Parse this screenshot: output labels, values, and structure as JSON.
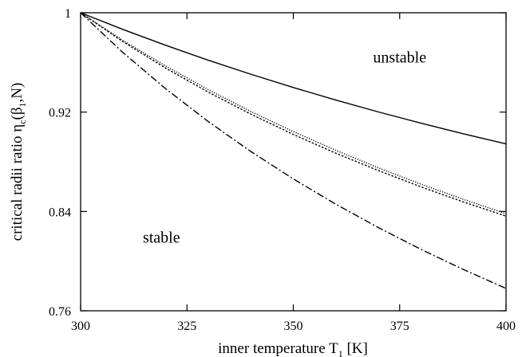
{
  "chart_data": {
    "type": "line",
    "xlabel": "inner temperature T",
    "xlabel_sub": "1",
    "xlabel_unit": " [K]",
    "ylabel": "critical radii ratio  η",
    "ylabel_sub_c": "c",
    "ylabel_open": "(β",
    "ylabel_sub_1": "1",
    "ylabel_close": ",N)",
    "xlim": [
      300,
      400
    ],
    "ylim": [
      0.76,
      1.0
    ],
    "xticks": [
      300,
      325,
      350,
      375,
      400
    ],
    "yticks": [
      {
        "value": 0.76,
        "label": "0.76"
      },
      {
        "value": 0.84,
        "label": "0.84"
      },
      {
        "value": 0.92,
        "label": "0.92"
      },
      {
        "value": 1.0,
        "label": "1"
      }
    ],
    "annotations": [
      {
        "text": "unstable",
        "x": 375,
        "y": 0.96
      },
      {
        "text": "stable",
        "x": 319,
        "y": 0.815
      }
    ],
    "grid": false,
    "series": [
      {
        "style": "solid",
        "x": [
          300,
          310,
          320,
          330,
          340,
          350,
          360,
          370,
          380,
          390,
          400
        ],
        "y": [
          1.0,
          0.9865,
          0.9738,
          0.9618,
          0.9505,
          0.9398,
          0.9297,
          0.9201,
          0.9111,
          0.9025,
          0.8944
        ]
      },
      {
        "style": "dotted",
        "x": [
          300,
          310,
          320,
          330,
          340,
          350,
          360,
          370,
          380,
          390,
          400
        ],
        "y": [
          1.0,
          0.9776,
          0.9571,
          0.9381,
          0.9205,
          0.9043,
          0.8892,
          0.8751,
          0.862,
          0.8497,
          0.8382
        ]
      },
      {
        "style": "dashed",
        "x": [
          300,
          310,
          320,
          330,
          340,
          350,
          360,
          370,
          380,
          390,
          400
        ],
        "y": [
          1.0,
          0.9766,
          0.9554,
          0.9361,
          0.9184,
          0.902,
          0.8869,
          0.8729,
          0.8598,
          0.8476,
          0.8362
        ]
      },
      {
        "style": "dashdot",
        "x": [
          300,
          310,
          320,
          330,
          340,
          350,
          360,
          370,
          380,
          390,
          400
        ],
        "y": [
          1.0,
          0.9678,
          0.9388,
          0.9124,
          0.8883,
          0.8662,
          0.8458,
          0.827,
          0.8095,
          0.7932,
          0.778
        ]
      }
    ]
  }
}
